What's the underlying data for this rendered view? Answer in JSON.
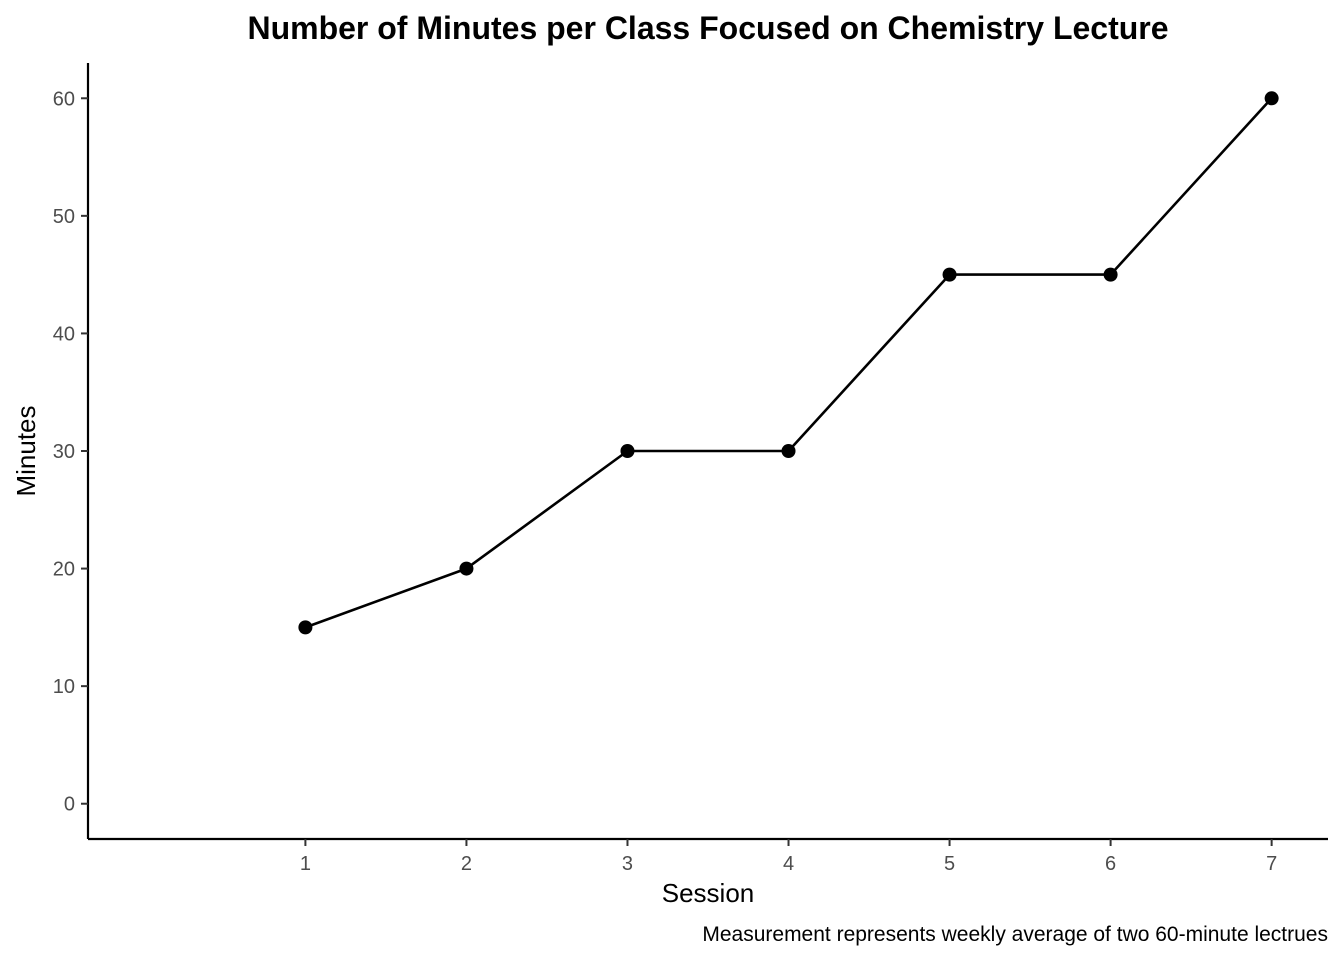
{
  "chart_data": {
    "type": "line",
    "title": "Number of Minutes per Class Focused on Chemistry Lecture",
    "xlabel": "Session",
    "ylabel": "Minutes",
    "caption": "Measurement represents weekly average of two 60-minute lectrues",
    "x": [
      1,
      2,
      3,
      4,
      5,
      6,
      7
    ],
    "y": [
      15,
      20,
      30,
      30,
      45,
      45,
      60
    ],
    "x_ticks": [
      "1",
      "2",
      "3",
      "4",
      "5",
      "6",
      "7"
    ],
    "y_ticks": [
      "0",
      "10",
      "20",
      "30",
      "40",
      "50",
      "60"
    ],
    "xlim": [
      -0.35,
      7.35
    ],
    "ylim": [
      -3,
      63
    ],
    "grid": false,
    "legend": "none",
    "line_color": "#000000",
    "point_color": "#000000",
    "axis_color": "#000000",
    "tick_label_color": "#4d4d4d"
  }
}
